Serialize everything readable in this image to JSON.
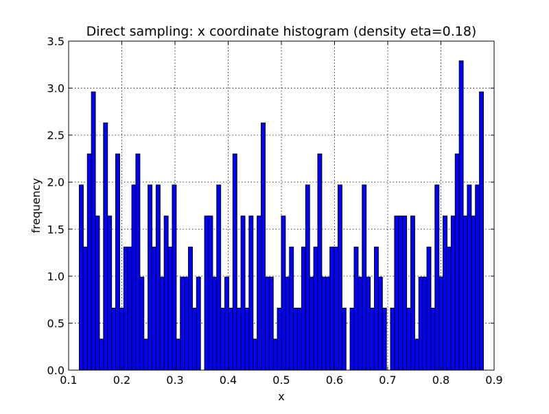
{
  "chart_data": {
    "type": "bar",
    "title": "Direct sampling: x coordinate histogram (density eta=0.18)",
    "xlabel": "x",
    "ylabel": "frequency",
    "xlim": [
      0.1,
      0.9
    ],
    "ylim": [
      0.0,
      3.5
    ],
    "xticks": [
      "0.1",
      "0.2",
      "0.3",
      "0.4",
      "0.5",
      "0.6",
      "0.7",
      "0.8",
      "0.9"
    ],
    "yticks": [
      "0.0",
      "0.5",
      "1.0",
      "1.5",
      "2.0",
      "2.5",
      "3.0",
      "3.5"
    ],
    "grid": true,
    "bar_color": "#0000ff",
    "bin_start": 0.12,
    "bin_width": 0.0076,
    "values": [
      1.97,
      1.31,
      2.3,
      2.96,
      1.64,
      0.33,
      2.63,
      1.64,
      0.66,
      2.3,
      0.66,
      1.31,
      1.31,
      1.97,
      2.3,
      0.99,
      0.33,
      1.97,
      1.31,
      1.97,
      0.99,
      1.64,
      1.31,
      1.97,
      0.33,
      0.99,
      0.99,
      1.31,
      0.66,
      0.99,
      0,
      1.64,
      1.64,
      0.99,
      1.97,
      0.66,
      0.99,
      0.66,
      2.3,
      0.66,
      1.64,
      0.66,
      1.64,
      0.33,
      1.64,
      2.63,
      0.99,
      0.99,
      0.33,
      0.66,
      1.64,
      0.99,
      1.31,
      0.66,
      0.66,
      1.31,
      1.97,
      0.99,
      1.31,
      2.3,
      0.99,
      0.99,
      1.31,
      1.31,
      1.97,
      0.66,
      0,
      0.66,
      1.31,
      0.99,
      1.97,
      0.99,
      0.66,
      1.31,
      0.99,
      0.66,
      0,
      0.66,
      1.64,
      1.64,
      1.64,
      0.66,
      1.64,
      0.33,
      0.99,
      0.99,
      1.31,
      0.66,
      1.97,
      0.99,
      1.64,
      1.31,
      1.64,
      2.3,
      3.29,
      1.64,
      1.97,
      1.64,
      1.97,
      2.96
    ]
  }
}
